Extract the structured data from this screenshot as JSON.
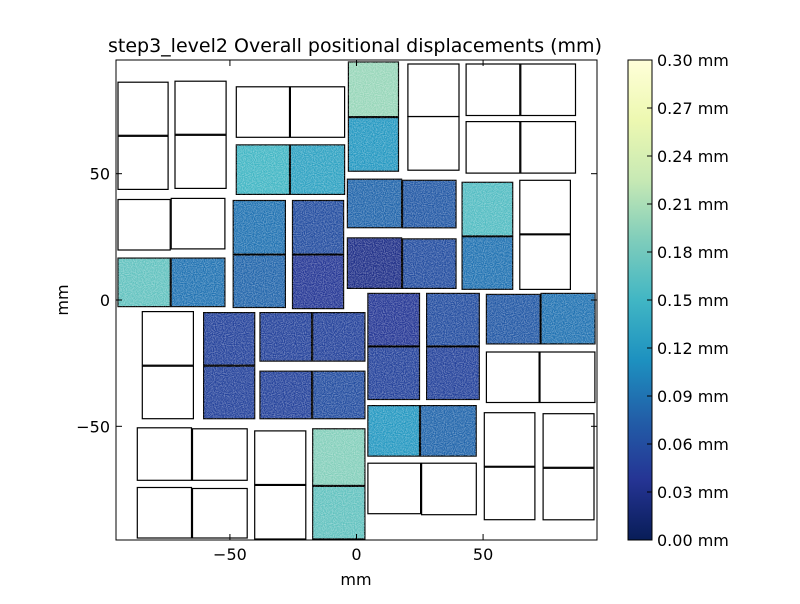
{
  "chart_data": {
    "type": "heatmap",
    "title": "step3_level2 Overall positional displacements (mm)",
    "xlabel": "mm",
    "ylabel": "mm",
    "xlim": [
      -95,
      95
    ],
    "ylim": [
      -95,
      95
    ],
    "x_ticks": [
      {
        "value": -50,
        "label": "−50"
      },
      {
        "value": 0,
        "label": "0"
      },
      {
        "value": 50,
        "label": "50"
      }
    ],
    "y_ticks": [
      {
        "value": 50,
        "label": "50"
      },
      {
        "value": 0,
        "label": "0"
      },
      {
        "value": -50,
        "label": "−50"
      }
    ],
    "colorbar": {
      "colormap": "YlGnBu_r",
      "min": 0.0,
      "max": 0.3,
      "ticks": [
        {
          "value": 0.0,
          "label": "0.00 mm"
        },
        {
          "value": 0.03,
          "label": "0.03 mm"
        },
        {
          "value": 0.06,
          "label": "0.06 mm"
        },
        {
          "value": 0.09,
          "label": "0.09 mm"
        },
        {
          "value": 0.12,
          "label": "0.12 mm"
        },
        {
          "value": 0.15,
          "label": "0.15 mm"
        },
        {
          "value": 0.18,
          "label": "0.18 mm"
        },
        {
          "value": 0.21,
          "label": "0.21 mm"
        },
        {
          "value": 0.24,
          "label": "0.24 mm"
        },
        {
          "value": 0.27,
          "label": "0.27 mm"
        },
        {
          "value": 0.3,
          "label": "0.30 mm"
        }
      ]
    },
    "grid": false,
    "tiles": [
      {
        "x0": -94.2,
        "x1": -74.4,
        "y0": 65.2,
        "y1": 86.2,
        "value": null
      },
      {
        "x0": -94.2,
        "x1": -74.4,
        "y0": 43.8,
        "y1": 64.8,
        "value": null
      },
      {
        "x0": -71.7,
        "x1": -51.5,
        "y0": 65.6,
        "y1": 86.6,
        "value": null
      },
      {
        "x0": -71.7,
        "x1": -51.5,
        "y0": 44.2,
        "y1": 65.2,
        "value": null
      },
      {
        "x0": -47.5,
        "x1": -26.5,
        "y0": 64.4,
        "y1": 84.4,
        "value": null
      },
      {
        "x0": -26.1,
        "x1": -4.7,
        "y0": 64.4,
        "y1": 84.4,
        "value": null
      },
      {
        "x0": -47.5,
        "x1": -26.5,
        "y0": 41.8,
        "y1": 61.4,
        "value": 0.15
      },
      {
        "x0": -26.1,
        "x1": -4.7,
        "y0": 41.8,
        "y1": 61.4,
        "value": 0.13
      },
      {
        "x0": -3.2,
        "x1": 16.6,
        "y0": 72.6,
        "y1": 94.2,
        "value": 0.2
      },
      {
        "x0": -3.2,
        "x1": 16.6,
        "y0": 51.0,
        "y1": 72.2,
        "value": 0.12
      },
      {
        "x0": 20.3,
        "x1": 40.5,
        "y0": 72.6,
        "y1": 93.4,
        "value": null
      },
      {
        "x0": 20.3,
        "x1": 40.5,
        "y0": 51.4,
        "y1": 72.6,
        "value": null
      },
      {
        "x0": 43.3,
        "x1": 64.5,
        "y0": 73.0,
        "y1": 93.4,
        "value": null
      },
      {
        "x0": 64.9,
        "x1": 86.5,
        "y0": 73.0,
        "y1": 93.4,
        "value": null
      },
      {
        "x0": 43.3,
        "x1": 64.5,
        "y0": 50.2,
        "y1": 70.6,
        "value": null
      },
      {
        "x0": 64.9,
        "x1": 86.5,
        "y0": 50.2,
        "y1": 70.6,
        "value": null
      },
      {
        "x0": -94.2,
        "x1": -73.6,
        "y0": 19.8,
        "y1": 39.8,
        "value": null
      },
      {
        "x0": -73.2,
        "x1": -52.0,
        "y0": 20.2,
        "y1": 40.2,
        "value": null
      },
      {
        "x0": -48.7,
        "x1": -28.1,
        "y0": 18.2,
        "y1": 39.4,
        "value": 0.09
      },
      {
        "x0": -48.7,
        "x1": -28.1,
        "y0": -3.0,
        "y1": 17.8,
        "value": 0.08
      },
      {
        "x0": -25.3,
        "x1": -5.1,
        "y0": 18.2,
        "y1": 39.4,
        "value": 0.06
      },
      {
        "x0": -25.3,
        "x1": -5.1,
        "y0": -3.4,
        "y1": 17.8,
        "value": 0.04
      },
      {
        "x0": -3.6,
        "x1": 17.8,
        "y0": 28.6,
        "y1": 47.8,
        "value": 0.08
      },
      {
        "x0": 18.2,
        "x1": 39.3,
        "y0": 28.6,
        "y1": 47.4,
        "value": 0.07
      },
      {
        "x0": -3.6,
        "x1": 17.8,
        "y0": 4.6,
        "y1": 24.6,
        "value": 0.03
      },
      {
        "x0": 18.2,
        "x1": 39.3,
        "y0": 4.6,
        "y1": 24.2,
        "value": 0.06
      },
      {
        "x0": 41.7,
        "x1": 61.7,
        "y0": 25.4,
        "y1": 46.6,
        "value": 0.16
      },
      {
        "x0": 41.7,
        "x1": 61.7,
        "y0": 4.2,
        "y1": 25.0,
        "value": 0.09
      },
      {
        "x0": 64.5,
        "x1": 84.5,
        "y0": 26.2,
        "y1": 47.4,
        "value": null
      },
      {
        "x0": 64.5,
        "x1": 84.5,
        "y0": 4.2,
        "y1": 25.8,
        "value": null
      },
      {
        "x0": -94.2,
        "x1": -73.6,
        "y0": -2.6,
        "y1": 16.6,
        "value": 0.17
      },
      {
        "x0": -73.2,
        "x1": -52.0,
        "y0": -2.6,
        "y1": 16.6,
        "value": 0.09
      },
      {
        "x0": -84.6,
        "x1": -64.4,
        "y0": -25.8,
        "y1": -4.6,
        "value": null
      },
      {
        "x0": -84.6,
        "x1": -64.4,
        "y0": -47.0,
        "y1": -26.2,
        "value": null
      },
      {
        "x0": -60.4,
        "x1": -40.2,
        "y0": -25.8,
        "y1": -5.0,
        "value": 0.05
      },
      {
        "x0": -60.4,
        "x1": -40.2,
        "y0": -47.0,
        "y1": -26.2,
        "value": 0.05
      },
      {
        "x0": -38.1,
        "x1": -17.7,
        "y0": -24.2,
        "y1": -5.0,
        "value": 0.05
      },
      {
        "x0": -17.3,
        "x1": 3.3,
        "y0": -24.2,
        "y1": -5.0,
        "value": 0.05
      },
      {
        "x0": -38.1,
        "x1": -17.7,
        "y0": -47.0,
        "y1": -28.2,
        "value": 0.05
      },
      {
        "x0": -17.3,
        "x1": 3.3,
        "y0": -47.0,
        "y1": -28.2,
        "value": 0.06
      },
      {
        "x0": 4.5,
        "x1": 24.9,
        "y0": -18.2,
        "y1": 2.6,
        "value": 0.04
      },
      {
        "x0": 4.5,
        "x1": 24.9,
        "y0": -39.4,
        "y1": -18.6,
        "value": 0.05
      },
      {
        "x0": 27.7,
        "x1": 48.5,
        "y0": -18.2,
        "y1": 2.6,
        "value": 0.06
      },
      {
        "x0": 27.7,
        "x1": 48.5,
        "y0": -39.4,
        "y1": -18.6,
        "value": 0.05
      },
      {
        "x0": 51.3,
        "x1": 72.5,
        "y0": -17.4,
        "y1": 2.2,
        "value": 0.07
      },
      {
        "x0": 72.9,
        "x1": 94.2,
        "y0": -17.4,
        "y1": 2.6,
        "value": 0.09
      },
      {
        "x0": 51.3,
        "x1": 72.1,
        "y0": -40.6,
        "y1": -20.6,
        "value": null
      },
      {
        "x0": 72.5,
        "x1": 94.2,
        "y0": -40.6,
        "y1": -20.6,
        "value": null
      },
      {
        "x0": 4.5,
        "x1": 24.9,
        "y0": -61.8,
        "y1": -41.8,
        "value": 0.12
      },
      {
        "x0": 25.3,
        "x1": 47.3,
        "y0": -61.8,
        "y1": -41.8,
        "value": 0.08
      },
      {
        "x0": -86.6,
        "x1": -65.2,
        "y0": -71.4,
        "y1": -50.6,
        "value": null
      },
      {
        "x0": -64.8,
        "x1": -43.2,
        "y0": -71.4,
        "y1": -51.0,
        "value": null
      },
      {
        "x0": -86.6,
        "x1": -65.2,
        "y0": -94.2,
        "y1": -74.2,
        "value": null
      },
      {
        "x0": -64.8,
        "x1": -43.2,
        "y0": -94.2,
        "y1": -74.6,
        "value": null
      },
      {
        "x0": -40.2,
        "x1": -20.0,
        "y0": -73.0,
        "y1": -51.8,
        "value": null
      },
      {
        "x0": -40.2,
        "x1": -20.0,
        "y0": -94.6,
        "y1": -73.4,
        "value": null
      },
      {
        "x0": -17.3,
        "x1": 3.3,
        "y0": -73.4,
        "y1": -51.0,
        "value": 0.19
      },
      {
        "x0": -17.3,
        "x1": 3.3,
        "y0": -94.6,
        "y1": -73.8,
        "value": 0.17
      },
      {
        "x0": 4.5,
        "x1": 25.3,
        "y0": -84.6,
        "y1": -64.6,
        "value": null
      },
      {
        "x0": 25.7,
        "x1": 47.3,
        "y0": -85.0,
        "y1": -64.6,
        "value": null
      },
      {
        "x0": 50.5,
        "x1": 70.5,
        "y0": -65.8,
        "y1": -44.6,
        "value": null
      },
      {
        "x0": 50.5,
        "x1": 70.5,
        "y0": -87.0,
        "y1": -66.2,
        "value": null
      },
      {
        "x0": 73.7,
        "x1": 93.8,
        "y0": -66.2,
        "y1": -45.0,
        "value": null
      },
      {
        "x0": 73.7,
        "x1": 93.8,
        "y0": -87.0,
        "y1": -66.6,
        "value": null
      }
    ]
  }
}
